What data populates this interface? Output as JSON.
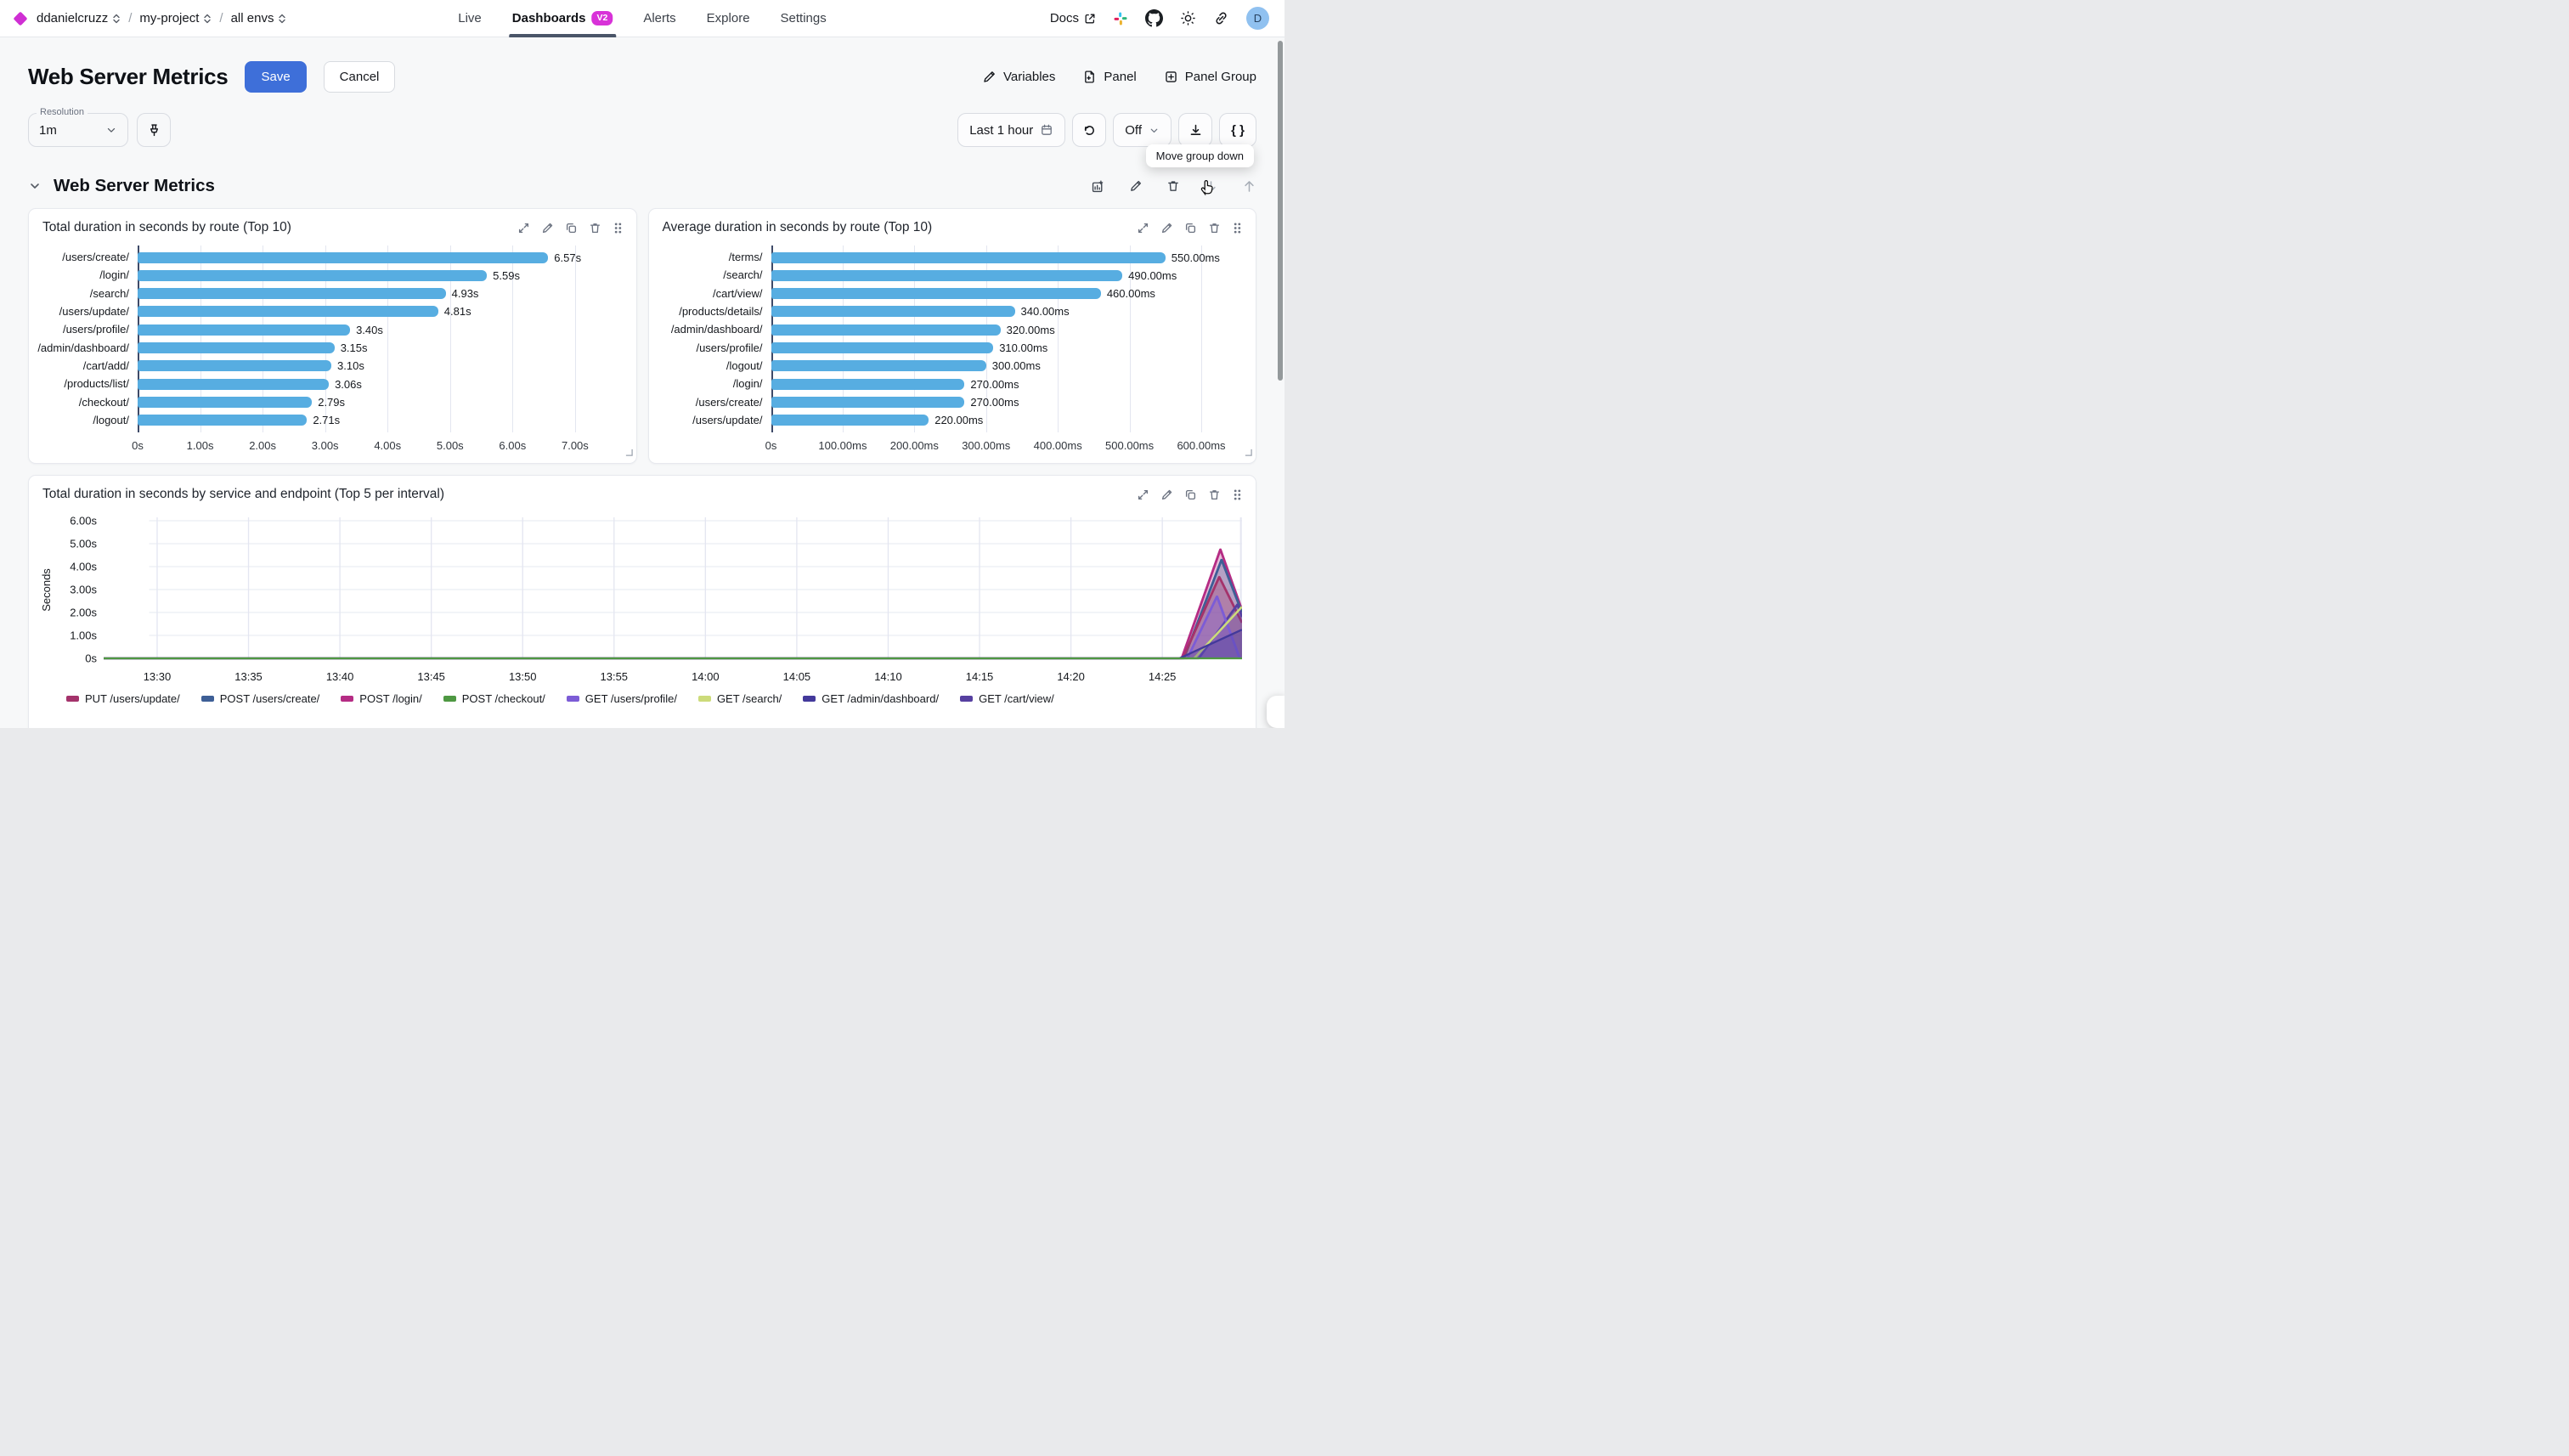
{
  "nav": {
    "breadcrumb": {
      "org": "ddanielcruzz",
      "project": "my-project",
      "env": "all envs"
    },
    "tabs": [
      {
        "label": "Live"
      },
      {
        "label": "Dashboards",
        "badge": "V2",
        "active": true
      },
      {
        "label": "Alerts"
      },
      {
        "label": "Explore"
      },
      {
        "label": "Settings"
      }
    ],
    "docs_label": "Docs",
    "avatar_initial": "D"
  },
  "header": {
    "title": "Web Server Metrics",
    "save_label": "Save",
    "cancel_label": "Cancel",
    "actions": [
      {
        "label": "Variables"
      },
      {
        "label": "Panel"
      },
      {
        "label": "Panel Group"
      }
    ]
  },
  "toolbar": {
    "resolution_label": "Resolution",
    "resolution_value": "1m",
    "time_range_label": "Last 1 hour",
    "refresh_interval_label": "Off",
    "tooltip": "Move group down"
  },
  "group": {
    "title": "Web Server Metrics"
  },
  "colors": {
    "accent_blue": "#3e6fd9",
    "brand_magenta": "#cf2fd3",
    "bar_blue": "#57ade1"
  },
  "chart_data": [
    {
      "type": "bar",
      "orientation": "horizontal",
      "title": "Total duration in seconds by route (Top 10)",
      "categories": [
        "/users/create/",
        "/login/",
        "/search/",
        "/users/update/",
        "/users/profile/",
        "/admin/dashboard/",
        "/cart/add/",
        "/products/list/",
        "/checkout/",
        "/logout/"
      ],
      "values": [
        6.57,
        5.59,
        4.93,
        4.81,
        3.4,
        3.15,
        3.1,
        3.06,
        2.79,
        2.71
      ],
      "value_labels": [
        "6.57s",
        "5.59s",
        "4.93s",
        "4.81s",
        "3.40s",
        "3.15s",
        "3.10s",
        "3.06s",
        "2.79s",
        "2.71s"
      ],
      "x_ticks": [
        "0s",
        "1.00s",
        "2.00s",
        "3.00s",
        "4.00s",
        "5.00s",
        "6.00s",
        "7.00s"
      ],
      "tick_values": [
        0,
        1,
        2,
        3,
        4,
        5,
        6,
        7
      ],
      "xmax": 7.62,
      "unit": "s"
    },
    {
      "type": "bar",
      "orientation": "horizontal",
      "title": "Average duration in seconds by route (Top 10)",
      "categories": [
        "/terms/",
        "/search/",
        "/cart/view/",
        "/products/details/",
        "/admin/dashboard/",
        "/users/profile/",
        "/logout/",
        "/login/",
        "/users/create/",
        "/users/update/"
      ],
      "values": [
        550,
        490,
        460,
        340,
        320,
        310,
        300,
        270,
        270,
        220
      ],
      "value_labels": [
        "550.00ms",
        "490.00ms",
        "460.00ms",
        "340.00ms",
        "320.00ms",
        "310.00ms",
        "300.00ms",
        "270.00ms",
        "270.00ms",
        "220.00ms"
      ],
      "x_ticks": [
        "0s",
        "100.00ms",
        "200.00ms",
        "300.00ms",
        "400.00ms",
        "500.00ms",
        "600.00ms"
      ],
      "tick_values": [
        0,
        100,
        200,
        300,
        400,
        500,
        600
      ],
      "xmax": 645,
      "unit": "ms"
    },
    {
      "type": "area",
      "title": "Total duration in seconds by service and endpoint (Top 5 per interval)",
      "ylabel": "Seconds",
      "y_ticks": [
        "6.00s",
        "5.00s",
        "4.00s",
        "3.00s",
        "2.00s",
        "1.00s",
        "0s"
      ],
      "y_tick_values": [
        6,
        5,
        4,
        3,
        2,
        1,
        0
      ],
      "ylim": [
        0,
        6.6
      ],
      "x_ticks": [
        "13:30",
        "13:35",
        "13:40",
        "13:45",
        "13:50",
        "13:55",
        "14:00",
        "14:05",
        "14:10",
        "14:15",
        "14:20",
        "14:25"
      ],
      "grid": true,
      "legend_position": "bottom",
      "series": [
        {
          "name": "PUT /users/update/",
          "color": "#a4336b",
          "points": [
            [
              0,
              0
            ],
            [
              0.948,
              0
            ],
            [
              0.98,
              3.55
            ],
            [
              1,
              1.55
            ]
          ]
        },
        {
          "name": "POST /users/create/",
          "color": "#3e5f96",
          "points": [
            [
              0,
              0
            ],
            [
              0.949,
              0
            ],
            [
              0.982,
              4.3
            ],
            [
              1,
              2.0
            ]
          ]
        },
        {
          "name": "POST /login/",
          "color": "#b52c84",
          "points": [
            [
              0,
              0
            ],
            [
              0.947,
              0
            ],
            [
              0.981,
              4.75
            ],
            [
              1,
              2.1
            ]
          ]
        },
        {
          "name": "POST /checkout/",
          "color": "#4e9842",
          "points": [
            [
              0,
              0
            ],
            [
              1,
              0
            ]
          ]
        },
        {
          "name": "GET /users/profile/",
          "color": "#7c5cd6",
          "points": [
            [
              0,
              0
            ],
            [
              0.952,
              0
            ],
            [
              0.978,
              2.7
            ],
            [
              0.998,
              0
            ]
          ]
        },
        {
          "name": "GET /search/",
          "color": "#ccdb7a",
          "points": [
            [
              0,
              0
            ],
            [
              0.958,
              0
            ],
            [
              1,
              2.25
            ]
          ],
          "line_only": true
        },
        {
          "name": "GET /admin/dashboard/",
          "color": "#43399b",
          "points": [
            [
              0,
              0
            ],
            [
              0.945,
              0
            ],
            [
              1,
              1.25
            ]
          ]
        },
        {
          "name": "GET /cart/view/",
          "color": "#5640a0",
          "points": [
            [
              0,
              0
            ],
            [
              0.962,
              0
            ],
            [
              0.996,
              2.35
            ],
            [
              1,
              1.8
            ]
          ]
        }
      ],
      "draw_order": [
        2,
        1,
        0,
        7,
        4,
        5,
        6,
        3
      ]
    }
  ]
}
